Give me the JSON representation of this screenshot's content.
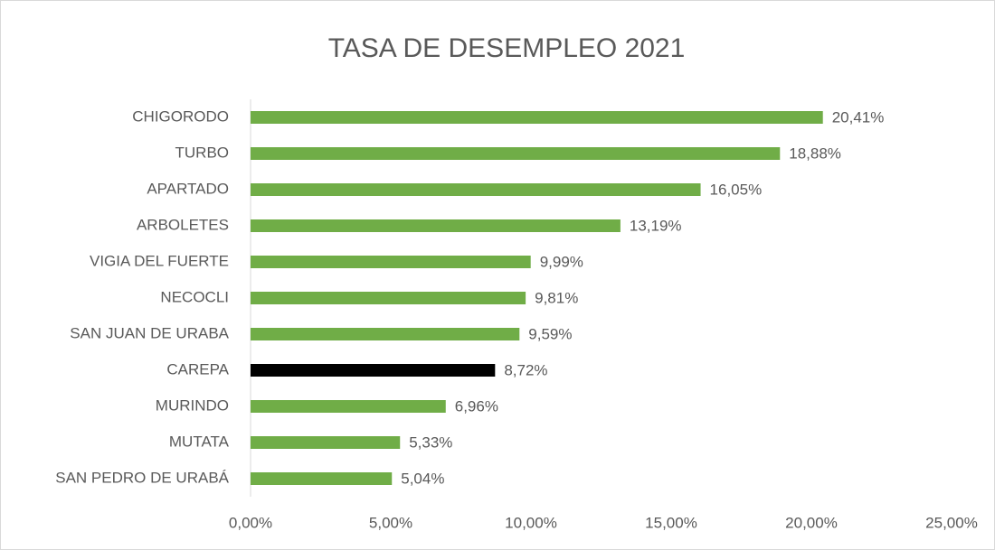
{
  "chart_data": {
    "type": "bar",
    "orientation": "horizontal",
    "title": "TASA DE DESEMPLEO 2021",
    "categories": [
      "CHIGORODO",
      "TURBO",
      "APARTADO",
      "ARBOLETES",
      "VIGIA DEL FUERTE",
      "NECOCLI",
      "SAN JUAN DE URABA",
      "CAREPA",
      "MURINDO",
      "MUTATA",
      "SAN PEDRO DE URABÁ"
    ],
    "values": [
      20.41,
      18.88,
      16.05,
      13.19,
      9.99,
      9.81,
      9.59,
      8.72,
      6.96,
      5.33,
      5.04
    ],
    "value_labels": [
      "20,41%",
      "18,88%",
      "16,05%",
      "13,19%",
      "9,99%",
      "9,81%",
      "9,59%",
      "8,72%",
      "6,96%",
      "5,33%",
      "5,04%"
    ],
    "colors": [
      "#70ad47",
      "#70ad47",
      "#70ad47",
      "#70ad47",
      "#70ad47",
      "#70ad47",
      "#70ad47",
      "#000000",
      "#70ad47",
      "#70ad47",
      "#70ad47"
    ],
    "xlim": [
      0,
      25
    ],
    "xticks": [
      {
        "value": 0,
        "label": "0,00%"
      },
      {
        "value": 5,
        "label": "5,00%"
      },
      {
        "value": 10,
        "label": "10,00%"
      },
      {
        "value": 15,
        "label": "15,00%"
      },
      {
        "value": 20,
        "label": "20,00%"
      },
      {
        "value": 25,
        "label": "25,00%"
      }
    ],
    "grid": false
  }
}
